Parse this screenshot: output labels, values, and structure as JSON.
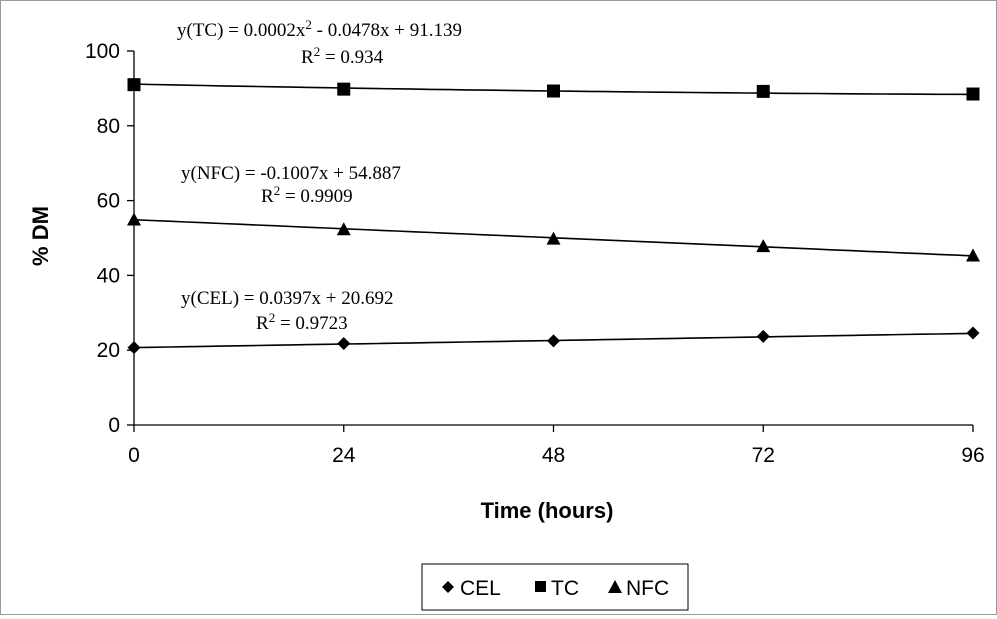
{
  "chart_data": {
    "type": "line",
    "xlabel": "Time (hours)",
    "ylabel": "% DM",
    "x": [
      0,
      24,
      48,
      72,
      96
    ],
    "xlim": [
      0,
      96
    ],
    "ylim": [
      0,
      100
    ],
    "xticks": [
      "0",
      "24",
      "48",
      "72",
      "96"
    ],
    "yticks": [
      "0",
      "20",
      "40",
      "60",
      "80",
      "100"
    ],
    "grid": false,
    "legend_position": "bottom",
    "series": [
      {
        "name": "CEL",
        "marker": "diamond",
        "values": [
          20.7,
          21.8,
          22.5,
          23.7,
          24.6
        ],
        "trendline": {
          "type": "linear",
          "coefficients": [
            0.0397,
            20.692
          ]
        },
        "equation": "y(CEL) = 0.0397x + 20.692",
        "r2_prefix": "R",
        "r2_value": " = 0.9723"
      },
      {
        "name": "TC",
        "marker": "square",
        "values": [
          91.0,
          89.8,
          89.3,
          89.2,
          88.5
        ],
        "trendline": {
          "type": "polynomial",
          "coefficients": [
            0.0002,
            -0.0478,
            91.139
          ]
        },
        "equation_prefix": "y(TC) = 0.0002x",
        "equation_suffix": " - 0.0478x + 91.139",
        "r2_prefix": "R",
        "r2_value": " = 0.934"
      },
      {
        "name": "NFC",
        "marker": "triangle",
        "values": [
          54.8,
          52.2,
          49.7,
          47.7,
          45.2
        ],
        "trendline": {
          "type": "linear",
          "coefficients": [
            -0.1007,
            54.887
          ]
        },
        "equation": "y(NFC) = -0.1007x + 54.887",
        "r2_prefix": "R",
        "r2_value": " = 0.9909"
      }
    ],
    "superscript": "2",
    "colors": {
      "series": "#000000",
      "axis": "#000000",
      "frame": "#9a9a9a"
    }
  }
}
